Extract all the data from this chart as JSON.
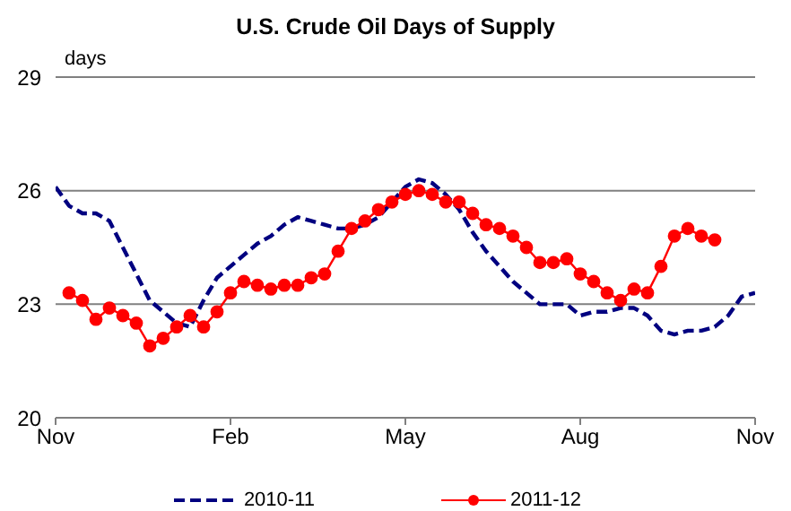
{
  "chart_data": {
    "type": "line",
    "title": "U.S. Crude Oil Days  of Supply",
    "ylabel": "days",
    "categories": [
      "Nov",
      null,
      null,
      null,
      null,
      null,
      null,
      null,
      null,
      null,
      null,
      null,
      null,
      "Feb",
      null,
      null,
      null,
      null,
      null,
      null,
      null,
      null,
      null,
      null,
      null,
      null,
      "May",
      null,
      null,
      null,
      null,
      null,
      null,
      null,
      null,
      null,
      null,
      null,
      null,
      "Aug",
      null,
      null,
      null,
      null,
      null,
      null,
      null,
      null,
      null,
      null,
      null,
      null,
      "Nov"
    ],
    "ylim": [
      20,
      29
    ],
    "yticks": [
      20,
      23,
      26,
      29
    ],
    "grid": "y",
    "legend": "bottom",
    "series": [
      {
        "name": "2010-11",
        "color": "#000080",
        "line_style": "dashed",
        "marker": "none",
        "values": [
          26.1,
          25.6,
          25.4,
          25.4,
          25.2,
          24.5,
          23.8,
          23.1,
          22.8,
          22.5,
          22.4,
          23.1,
          23.7,
          24.0,
          24.3,
          24.6,
          24.8,
          25.1,
          25.3,
          25.2,
          25.1,
          25.0,
          25.0,
          25.1,
          25.3,
          25.7,
          26.1,
          26.3,
          26.2,
          25.9,
          25.5,
          24.9,
          24.4,
          24.0,
          23.6,
          23.3,
          23.0,
          23.0,
          23.0,
          22.7,
          22.8,
          22.8,
          22.9,
          22.9,
          22.7,
          22.3,
          22.2,
          22.3,
          22.3,
          22.4,
          22.7,
          23.2,
          23.3
        ]
      },
      {
        "name": "2011-12",
        "color": "#ff0000",
        "line_style": "solid",
        "marker": "circle",
        "values": [
          null,
          23.3,
          23.1,
          22.6,
          22.9,
          22.7,
          22.5,
          21.9,
          22.1,
          22.4,
          22.7,
          22.4,
          22.8,
          23.3,
          23.6,
          23.5,
          23.4,
          23.5,
          23.5,
          23.7,
          23.8,
          24.4,
          25.0,
          25.2,
          25.5,
          25.7,
          25.9,
          26.0,
          25.9,
          25.7,
          25.7,
          25.4,
          25.1,
          25.0,
          24.8,
          24.5,
          24.1,
          24.1,
          24.2,
          23.8,
          23.6,
          23.3,
          23.1,
          23.4,
          23.3,
          24.0,
          24.8,
          25.0,
          24.8,
          24.7,
          null,
          null,
          null
        ]
      }
    ]
  }
}
